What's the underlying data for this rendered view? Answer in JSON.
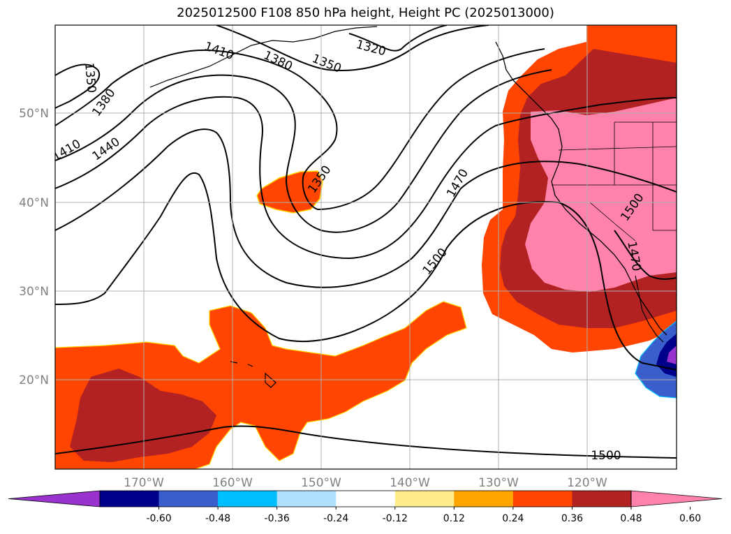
{
  "title": "2025012500 F108 850 hPa height, Height PC (2025013000)",
  "map": {
    "lat_labels": [
      "50°N",
      "40°N",
      "30°N",
      "20°N"
    ],
    "lon_labels": [
      "170°W",
      "160°W",
      "150°W",
      "140°W",
      "130°W",
      "120°W"
    ],
    "contour_labels": [
      "1410",
      "1380",
      "1350",
      "1320",
      "1350",
      "1380",
      "1410",
      "1440",
      "1350",
      "1470",
      "1500",
      "1500",
      "1470",
      "1500"
    ]
  },
  "colorbar": {
    "ticks": [
      "-0.60",
      "-0.48",
      "-0.36",
      "-0.24",
      "-0.12",
      "0.12",
      "0.24",
      "0.36",
      "0.48",
      "0.60"
    ],
    "colors": [
      "#9a32cd",
      "#00008b",
      "#3a5fcd",
      "#00bfff",
      "#b0e2ff",
      "#ffffff",
      "#ffec8b",
      "#ffa500",
      "#ff4500",
      "#b22222",
      "#ff82ab"
    ]
  }
}
